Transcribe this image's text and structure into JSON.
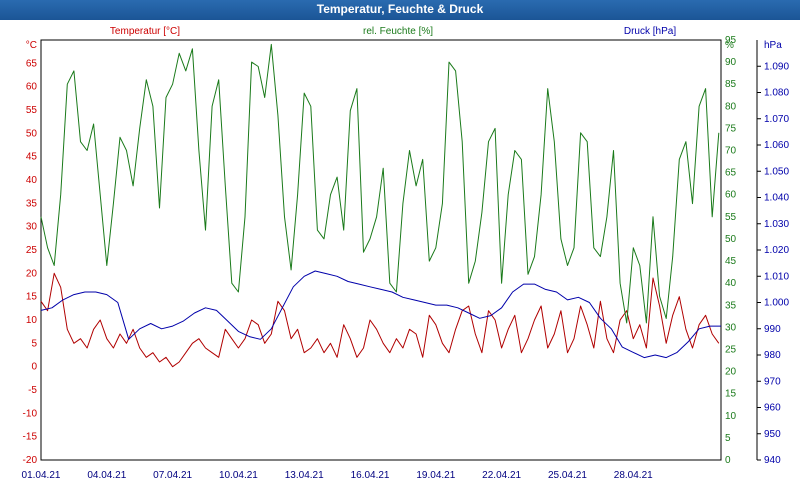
{
  "window": {
    "title": "Temperatur, Feuchte & Druck"
  },
  "chart_data": {
    "type": "line",
    "title": "Temperatur, Feuchte & Druck",
    "x_ticks": [
      "01.04.21",
      "04.04.21",
      "07.04.21",
      "10.04.21",
      "13.04.21",
      "16.04.21",
      "19.04.21",
      "22.04.21",
      "25.04.21",
      "28.04.21"
    ],
    "x_range_days": [
      1,
      32
    ],
    "grid": true,
    "axes": {
      "temperature": {
        "label": "Temperatur [°C]",
        "unit": "°C",
        "ylim": [
          -20,
          70
        ],
        "ticks": [
          "-20",
          "-15",
          "-10",
          "-5",
          "0",
          "5",
          "10",
          "15",
          "20",
          "25",
          "30",
          "35",
          "40",
          "45",
          "50",
          "55",
          "60",
          "65"
        ],
        "color": "#cc0000"
      },
      "humidity": {
        "label": "rel. Feuchte [%]",
        "unit": "%",
        "ylim": [
          0,
          95
        ],
        "ticks": [
          "0",
          "5",
          "10",
          "15",
          "20",
          "25",
          "30",
          "35",
          "40",
          "45",
          "50",
          "55",
          "60",
          "65",
          "70",
          "75",
          "80",
          "85",
          "90",
          "95"
        ],
        "color": "#1a7a1a"
      },
      "pressure": {
        "label": "Druck [hPa]",
        "unit": "hPa",
        "ylim": [
          940,
          1100
        ],
        "ticks": [
          "940",
          "950",
          "960",
          "970",
          "980",
          "990",
          "1.000",
          "1.010",
          "1.020",
          "1.030",
          "1.040",
          "1.050",
          "1.060",
          "1.070",
          "1.080",
          "1.090"
        ],
        "color": "#0000aa"
      }
    },
    "series": [
      {
        "name": "Temperatur [°C]",
        "axis": "temperature",
        "color": "#b00000",
        "day": [
          1.0,
          1.3,
          1.6,
          1.9,
          2.2,
          2.5,
          2.8,
          3.1,
          3.4,
          3.7,
          4.0,
          4.3,
          4.6,
          4.9,
          5.2,
          5.5,
          5.8,
          6.1,
          6.4,
          6.7,
          7.0,
          7.3,
          7.6,
          7.9,
          8.2,
          8.5,
          8.8,
          9.1,
          9.4,
          9.7,
          10.0,
          10.3,
          10.6,
          10.9,
          11.2,
          11.5,
          11.8,
          12.1,
          12.4,
          12.7,
          13.0,
          13.3,
          13.6,
          13.9,
          14.2,
          14.5,
          14.8,
          15.1,
          15.4,
          15.7,
          16.0,
          16.3,
          16.6,
          16.9,
          17.2,
          17.5,
          17.8,
          18.1,
          18.4,
          18.7,
          19.0,
          19.3,
          19.6,
          19.9,
          20.2,
          20.5,
          20.8,
          21.1,
          21.4,
          21.7,
          22.0,
          22.3,
          22.6,
          22.9,
          23.2,
          23.5,
          23.8,
          24.1,
          24.4,
          24.7,
          25.0,
          25.3,
          25.6,
          25.9,
          26.2,
          26.5,
          26.8,
          27.1,
          27.4,
          27.7,
          28.0,
          28.3,
          28.6,
          28.9,
          29.2,
          29.5,
          29.8,
          30.1,
          30.4,
          30.7,
          31.0,
          31.3,
          31.6,
          31.9
        ],
        "values": [
          14,
          12,
          20,
          17,
          8,
          5,
          6,
          4,
          8,
          10,
          6,
          4,
          7,
          5,
          8,
          4,
          2,
          3,
          1,
          2,
          0,
          1,
          3,
          5,
          6,
          4,
          3,
          2,
          8,
          6,
          4,
          6,
          10,
          9,
          5,
          7,
          14,
          12,
          6,
          8,
          3,
          4,
          6,
          3,
          5,
          2,
          9,
          6,
          2,
          4,
          10,
          8,
          5,
          3,
          6,
          4,
          8,
          7,
          2,
          11,
          9,
          5,
          3,
          8,
          12,
          13,
          7,
          3,
          12,
          10,
          4,
          8,
          11,
          3,
          6,
          10,
          13,
          4,
          7,
          12,
          3,
          6,
          13,
          9,
          4,
          14,
          6,
          3,
          10,
          12,
          6,
          9,
          4,
          19,
          13,
          5,
          11,
          15,
          8,
          4,
          9,
          11,
          7,
          5
        ]
      },
      {
        "name": "rel. Feuchte [%]",
        "axis": "humidity",
        "color": "#1a7a1a",
        "day": [
          1.0,
          1.3,
          1.6,
          1.9,
          2.2,
          2.5,
          2.8,
          3.1,
          3.4,
          3.7,
          4.0,
          4.3,
          4.6,
          4.9,
          5.2,
          5.5,
          5.8,
          6.1,
          6.4,
          6.7,
          7.0,
          7.3,
          7.6,
          7.9,
          8.2,
          8.5,
          8.8,
          9.1,
          9.4,
          9.7,
          10.0,
          10.3,
          10.6,
          10.9,
          11.2,
          11.5,
          11.8,
          12.1,
          12.4,
          12.7,
          13.0,
          13.3,
          13.6,
          13.9,
          14.2,
          14.5,
          14.8,
          15.1,
          15.4,
          15.7,
          16.0,
          16.3,
          16.6,
          16.9,
          17.2,
          17.5,
          17.8,
          18.1,
          18.4,
          18.7,
          19.0,
          19.3,
          19.6,
          19.9,
          20.2,
          20.5,
          20.8,
          21.1,
          21.4,
          21.7,
          22.0,
          22.3,
          22.6,
          22.9,
          23.2,
          23.5,
          23.8,
          24.1,
          24.4,
          24.7,
          25.0,
          25.3,
          25.6,
          25.9,
          26.2,
          26.5,
          26.8,
          27.1,
          27.4,
          27.7,
          28.0,
          28.3,
          28.6,
          28.9,
          29.2,
          29.5,
          29.8,
          30.1,
          30.4,
          30.7,
          31.0,
          31.3,
          31.6,
          31.9
        ],
        "values": [
          55,
          48,
          44,
          60,
          85,
          88,
          72,
          70,
          76,
          60,
          44,
          58,
          73,
          70,
          62,
          75,
          86,
          80,
          57,
          82,
          85,
          92,
          88,
          93,
          70,
          52,
          80,
          86,
          62,
          40,
          38,
          55,
          90,
          89,
          82,
          94,
          78,
          55,
          43,
          60,
          83,
          80,
          52,
          50,
          60,
          64,
          52,
          79,
          84,
          47,
          50,
          55,
          66,
          40,
          38,
          58,
          70,
          62,
          68,
          45,
          48,
          58,
          90,
          88,
          72,
          40,
          45,
          56,
          72,
          75,
          40,
          60,
          70,
          68,
          42,
          46,
          60,
          84,
          72,
          50,
          44,
          48,
          74,
          72,
          48,
          46,
          55,
          70,
          40,
          31,
          48,
          44,
          31,
          55,
          37,
          32,
          46,
          68,
          72,
          58,
          80,
          84,
          55,
          74
        ]
      },
      {
        "name": "Druck [hPa]",
        "axis": "pressure",
        "color": "#0000aa",
        "day": [
          1.0,
          1.5,
          2.0,
          2.5,
          3.0,
          3.5,
          4.0,
          4.5,
          5.0,
          5.5,
          6.0,
          6.5,
          7.0,
          7.5,
          8.0,
          8.5,
          9.0,
          9.5,
          10.0,
          10.5,
          11.0,
          11.5,
          12.0,
          12.5,
          13.0,
          13.5,
          14.0,
          14.5,
          15.0,
          15.5,
          16.0,
          16.5,
          17.0,
          17.5,
          18.0,
          18.5,
          19.0,
          19.5,
          20.0,
          20.5,
          21.0,
          21.5,
          22.0,
          22.5,
          23.0,
          23.5,
          24.0,
          24.5,
          25.0,
          25.5,
          26.0,
          26.5,
          27.0,
          27.5,
          28.0,
          28.5,
          29.0,
          29.5,
          30.0,
          30.5,
          31.0,
          31.5,
          32.0
        ],
        "values": [
          997,
          998,
          1001,
          1003,
          1004,
          1004,
          1003,
          1000,
          986,
          990,
          992,
          990,
          991,
          993,
          996,
          998,
          997,
          993,
          989,
          987,
          986,
          990,
          998,
          1006,
          1010,
          1012,
          1011,
          1010,
          1008,
          1007,
          1006,
          1005,
          1004,
          1002,
          1001,
          1000,
          999,
          999,
          998,
          996,
          994,
          995,
          998,
          1004,
          1007,
          1007,
          1005,
          1004,
          1001,
          1002,
          1000,
          994,
          990,
          983,
          981,
          979,
          980,
          979,
          981,
          985,
          990,
          991,
          991
        ]
      }
    ]
  }
}
